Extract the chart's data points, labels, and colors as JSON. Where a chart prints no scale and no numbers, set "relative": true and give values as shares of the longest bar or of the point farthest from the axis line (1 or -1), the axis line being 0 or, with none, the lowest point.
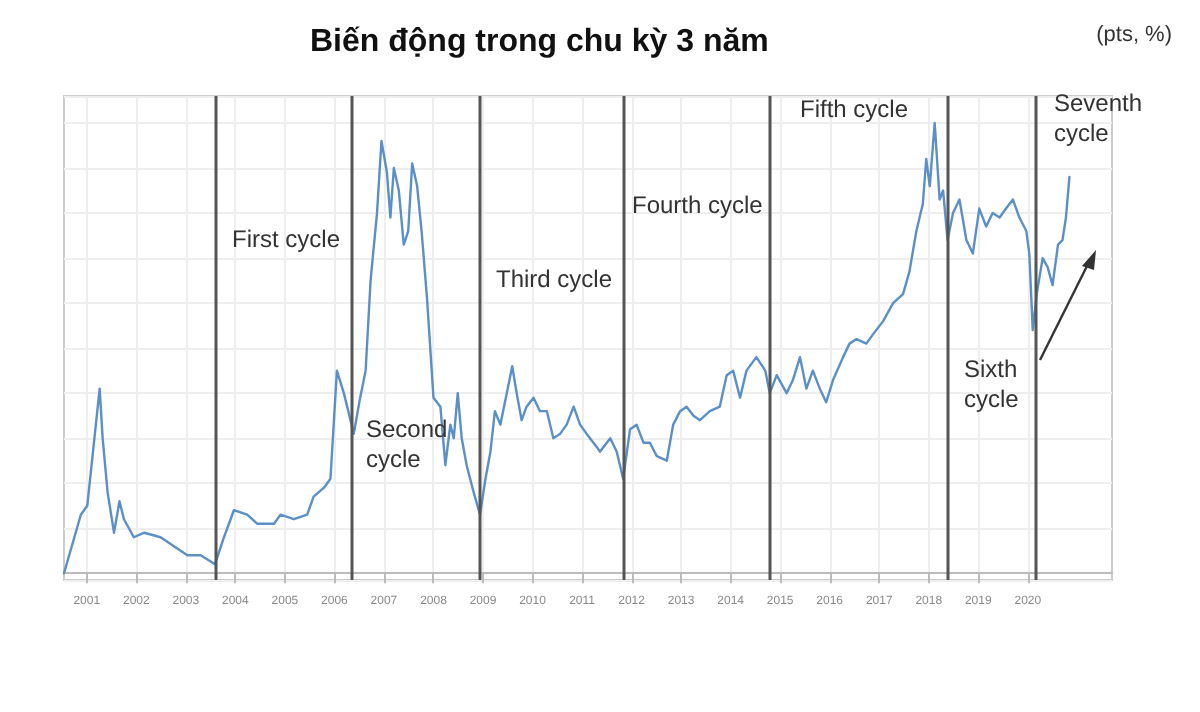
{
  "chart_data": {
    "type": "line",
    "title": "Biến động trong chu kỳ 3 năm",
    "ylabel": "(pts, %)",
    "relative": true,
    "grid": true,
    "marker": "none",
    "line_style": "solid",
    "annotations": [
      "First cycle",
      "Second cycle",
      "Third cycle",
      "Fourth cycle",
      "Fifth cycle",
      "Sixth cycle",
      "Seventh cycle"
    ],
    "xlim": [
      2000.54,
      2021.7
    ],
    "xticks": [
      2001,
      2002,
      2003,
      2004,
      2005,
      2006,
      2007,
      2008,
      2009,
      2010,
      2011,
      2012,
      2013,
      2014,
      2015,
      2016,
      2017,
      2018,
      2019,
      2020
    ],
    "ref_lines": [
      {
        "axis": "x",
        "value": 2003.58
      },
      {
        "axis": "x",
        "value": 2006.36
      },
      {
        "axis": "x",
        "value": 2008.94
      },
      {
        "axis": "x",
        "value": 2011.85
      },
      {
        "axis": "x",
        "value": 2014.79
      },
      {
        "axis": "x",
        "value": 2018.38
      },
      {
        "axis": "x",
        "value": 2020.15
      }
    ],
    "series": [
      {
        "color": "#5b8fc7",
        "x": [
          2000.54,
          2000.88,
          2001.01,
          2001.26,
          2001.32,
          2001.42,
          2001.55,
          2001.66,
          2001.75,
          2001.95,
          2002.16,
          2002.49,
          2002.76,
          2003.03,
          2003.3,
          2003.59,
          2003.77,
          2003.97,
          2004.24,
          2004.44,
          2004.78,
          2004.91,
          2005.18,
          2005.45,
          2005.58,
          2005.79,
          2005.92,
          2006.05,
          2006.19,
          2006.28,
          2006.39,
          2006.52,
          2006.63,
          2006.73,
          2006.86,
          2006.95,
          2007.06,
          2007.13,
          2007.2,
          2007.3,
          2007.4,
          2007.49,
          2007.57,
          2007.67,
          2007.76,
          2007.87,
          2008.0,
          2008.14,
          2008.24,
          2008.34,
          2008.41,
          2008.49,
          2008.57,
          2008.67,
          2008.81,
          2008.94,
          2009.05,
          2009.15,
          2009.24,
          2009.35,
          2009.48,
          2009.59,
          2009.68,
          2009.78,
          2009.88,
          2010.02,
          2010.15,
          2010.29,
          2010.42,
          2010.56,
          2010.69,
          2010.83,
          2010.96,
          2011.09,
          2011.3,
          2011.36,
          2011.57,
          2011.7,
          2011.83,
          2011.97,
          2012.1,
          2012.24,
          2012.37,
          2012.51,
          2012.71,
          2012.84,
          2012.98,
          2013.11,
          2013.25,
          2013.38,
          2013.58,
          2013.78,
          2013.92,
          2014.05,
          2014.19,
          2014.32,
          2014.52,
          2014.7,
          2014.79,
          2014.93,
          2015.13,
          2015.26,
          2015.4,
          2015.53,
          2015.66,
          2015.8,
          2015.93,
          2016.07,
          2016.27,
          2016.4,
          2016.54,
          2016.74,
          2016.87,
          2017.08,
          2017.28,
          2017.48,
          2017.61,
          2017.75,
          2017.88,
          2017.95,
          2018.02,
          2018.12,
          2018.22,
          2018.29,
          2018.38,
          2018.49,
          2018.62,
          2018.76,
          2018.89,
          2019.02,
          2019.16,
          2019.29,
          2019.43,
          2019.56,
          2019.7,
          2019.83,
          2019.97,
          2020.03,
          2020.1,
          2020.18,
          2020.3,
          2020.4,
          2020.5,
          2020.61,
          2020.7,
          2020.77,
          2020.84
        ],
        "values": [
          0.0,
          0.13,
          0.15,
          0.41,
          0.3,
          0.18,
          0.09,
          0.16,
          0.12,
          0.08,
          0.09,
          0.08,
          0.06,
          0.04,
          0.04,
          0.02,
          0.08,
          0.14,
          0.13,
          0.11,
          0.11,
          0.13,
          0.12,
          0.13,
          0.17,
          0.19,
          0.21,
          0.45,
          0.4,
          0.36,
          0.31,
          0.39,
          0.45,
          0.65,
          0.8,
          0.96,
          0.89,
          0.79,
          0.9,
          0.85,
          0.73,
          0.76,
          0.91,
          0.86,
          0.76,
          0.61,
          0.39,
          0.37,
          0.24,
          0.33,
          0.3,
          0.4,
          0.3,
          0.24,
          0.18,
          0.13,
          0.21,
          0.27,
          0.36,
          0.33,
          0.4,
          0.46,
          0.4,
          0.34,
          0.37,
          0.39,
          0.36,
          0.36,
          0.3,
          0.31,
          0.33,
          0.37,
          0.33,
          0.31,
          0.28,
          0.27,
          0.3,
          0.27,
          0.21,
          0.32,
          0.33,
          0.29,
          0.29,
          0.26,
          0.25,
          0.33,
          0.36,
          0.37,
          0.35,
          0.34,
          0.36,
          0.37,
          0.44,
          0.45,
          0.39,
          0.45,
          0.48,
          0.45,
          0.4,
          0.44,
          0.4,
          0.43,
          0.48,
          0.41,
          0.45,
          0.41,
          0.38,
          0.43,
          0.48,
          0.51,
          0.52,
          0.51,
          0.53,
          0.56,
          0.6,
          0.62,
          0.67,
          0.76,
          0.82,
          0.92,
          0.86,
          1.0,
          0.83,
          0.85,
          0.74,
          0.8,
          0.83,
          0.74,
          0.71,
          0.81,
          0.77,
          0.8,
          0.79,
          0.81,
          0.83,
          0.79,
          0.76,
          0.71,
          0.54,
          0.62,
          0.7,
          0.68,
          0.64,
          0.73,
          0.74,
          0.79,
          0.88
        ]
      }
    ]
  }
}
